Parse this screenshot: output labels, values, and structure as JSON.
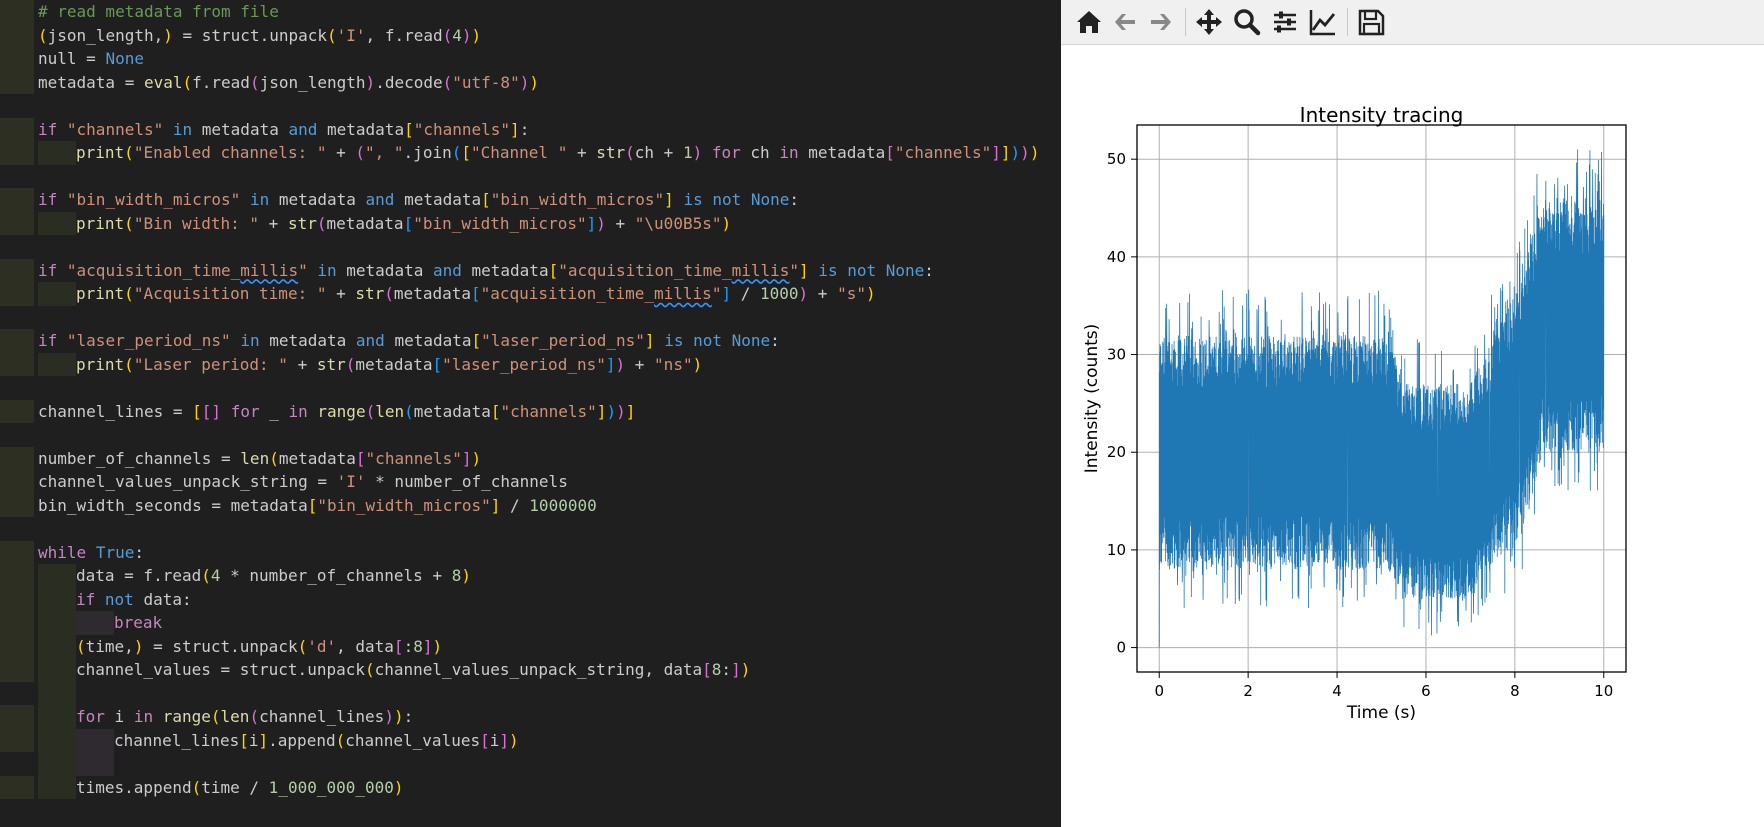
{
  "editor": {
    "lines": [
      {
        "ind": 0,
        "html": "<span class=\"cm\"># read metadata from file</span>"
      },
      {
        "ind": 0,
        "html": "<span class=\"br1\">(</span>json_length,<span class=\"br1\">)</span> = struct.unpack<span class=\"br1\">(</span><span class=\"str\">'I'</span>, f.read<span class=\"br2\">(</span><span class=\"num\">4</span><span class=\"br2\">)</span><span class=\"br1\">)</span>"
      },
      {
        "ind": 0,
        "html": "null = <span class=\"kw\">None</span>"
      },
      {
        "ind": 0,
        "html": "metadata = <span class=\"fn\">eval</span><span class=\"br1\">(</span>f.read<span class=\"br2\">(</span>json_length<span class=\"br2\">)</span>.decode<span class=\"br2\">(</span><span class=\"str\">\"utf-8\"</span><span class=\"br2\">)</span><span class=\"br1\">)</span>"
      },
      {
        "ind": -1,
        "html": ""
      },
      {
        "ind": 0,
        "html": "<span class=\"kw2\">if</span> <span class=\"str\">\"channels\"</span> <span class=\"kw\">in</span> metadata <span class=\"kw\">and</span> metadata<span class=\"br1\">[</span><span class=\"str\">\"channels\"</span><span class=\"br1\">]</span>:"
      },
      {
        "ind": 1,
        "html": "<span class=\"fn\">print</span><span class=\"br1\">(</span><span class=\"str\">\"Enabled channels: \"</span> + <span class=\"br2\">(</span><span class=\"str\">\", \"</span>.join<span class=\"br3\">(</span><span class=\"br1\">[</span><span class=\"str\">\"Channel \"</span> + <span class=\"fn\">str</span><span class=\"br2\">(</span>ch + <span class=\"num\">1</span><span class=\"br2\">)</span> <span class=\"kw2\">for</span> ch <span class=\"kw2\">in</span> metadata<span class=\"br2\">[</span><span class=\"str\">\"channels\"</span><span class=\"br2\">]</span><span class=\"br1\">]</span><span class=\"br3\">)</span><span class=\"br2\">)</span><span class=\"br1\">)</span>"
      },
      {
        "ind": -1,
        "html": ""
      },
      {
        "ind": 0,
        "html": "<span class=\"kw2\">if</span> <span class=\"str\">\"bin_width_micros\"</span> <span class=\"kw\">in</span> metadata <span class=\"kw\">and</span> metadata<span class=\"br1\">[</span><span class=\"str\">\"bin_width_micros\"</span><span class=\"br1\">]</span> <span class=\"kw\">is not</span> <span class=\"kw\">None</span>:"
      },
      {
        "ind": 1,
        "html": "<span class=\"fn\">print</span><span class=\"br1\">(</span><span class=\"str\">\"Bin width: \"</span> + <span class=\"fn\">str</span><span class=\"br2\">(</span>metadata<span class=\"br3\">[</span><span class=\"str\">\"bin_width_micros\"</span><span class=\"br3\">]</span><span class=\"br2\">)</span> + <span class=\"str\">\"\\u00B5s\"</span><span class=\"br1\">)</span>"
      },
      {
        "ind": -1,
        "html": ""
      },
      {
        "ind": 0,
        "html": "<span class=\"kw2\">if</span> <span class=\"str\">\"acquisition_time_<span class=\"squig\">millis</span>\"</span> <span class=\"kw\">in</span> metadata <span class=\"kw\">and</span> metadata<span class=\"br1\">[</span><span class=\"str\">\"acquisition_time_<span class=\"squig\">millis</span>\"</span><span class=\"br1\">]</span> <span class=\"kw\">is not</span> <span class=\"kw\">None</span>:"
      },
      {
        "ind": 1,
        "html": "<span class=\"fn\">print</span><span class=\"br1\">(</span><span class=\"str\">\"Acquisition time: \"</span> + <span class=\"fn\">str</span><span class=\"br2\">(</span>metadata<span class=\"br3\">[</span><span class=\"str\">\"acquisition_time_<span class=\"squig\">millis</span>\"</span><span class=\"br3\">]</span> / <span class=\"num\">1000</span><span class=\"br2\">)</span> + <span class=\"str\">\"s\"</span><span class=\"br1\">)</span>"
      },
      {
        "ind": -1,
        "html": ""
      },
      {
        "ind": 0,
        "html": "<span class=\"kw2\">if</span> <span class=\"str\">\"laser_period_ns\"</span> <span class=\"kw\">in</span> metadata <span class=\"kw\">and</span> metadata<span class=\"br1\">[</span><span class=\"str\">\"laser_period_ns\"</span><span class=\"br1\">]</span> <span class=\"kw\">is not</span> <span class=\"kw\">None</span>:"
      },
      {
        "ind": 1,
        "html": "<span class=\"fn\">print</span><span class=\"br1\">(</span><span class=\"str\">\"Laser period: \"</span> + <span class=\"fn\">str</span><span class=\"br2\">(</span>metadata<span class=\"br3\">[</span><span class=\"str\">\"laser_period_ns\"</span><span class=\"br3\">]</span><span class=\"br2\">)</span> + <span class=\"str\">\"ns\"</span><span class=\"br1\">)</span>"
      },
      {
        "ind": -1,
        "html": ""
      },
      {
        "ind": 0,
        "html": "channel_lines = <span class=\"br1\">[</span><span class=\"br2\">[</span><span class=\"br2\">]</span> <span class=\"kw2\">for</span> _ <span class=\"kw2\">in</span> <span class=\"fn\">range</span><span class=\"br2\">(</span><span class=\"fn\">len</span><span class=\"br3\">(</span>metadata<span class=\"br1\">[</span><span class=\"str\">\"channels\"</span><span class=\"br1\">]</span><span class=\"br3\">)</span><span class=\"br2\">)</span><span class=\"br1\">]</span>"
      },
      {
        "ind": -1,
        "html": ""
      },
      {
        "ind": 0,
        "html": "number_of_channels = <span class=\"fn\">len</span><span class=\"br1\">(</span>metadata<span class=\"br2\">[</span><span class=\"str\">\"channels\"</span><span class=\"br2\">]</span><span class=\"br1\">)</span>"
      },
      {
        "ind": 0,
        "html": "channel_values_unpack_string = <span class=\"str\">'I'</span> * number_of_channels"
      },
      {
        "ind": 0,
        "html": "bin_width_seconds = metadata<span class=\"br1\">[</span><span class=\"str\">\"bin_width_micros\"</span><span class=\"br1\">]</span> / <span class=\"num\">1000000</span>"
      },
      {
        "ind": -1,
        "html": ""
      },
      {
        "ind": 0,
        "html": "<span class=\"kw2\">while</span> <span class=\"kw\">True</span>:"
      },
      {
        "ind": 1,
        "html": "data = f.read<span class=\"br1\">(</span><span class=\"num\">4</span> * number_of_channels + <span class=\"num\">8</span><span class=\"br1\">)</span>"
      },
      {
        "ind": 1,
        "html": "<span class=\"kw2\">if</span> <span class=\"kw\">not</span> data:"
      },
      {
        "ind": 2,
        "html": "<span class=\"kw2\">break</span>"
      },
      {
        "ind": 1,
        "html": "<span class=\"br1\">(</span>time,<span class=\"br1\">)</span> = struct.unpack<span class=\"br1\">(</span><span class=\"str\">'d'</span>, data<span class=\"br2\">[</span>:<span class=\"num\">8</span><span class=\"br2\">]</span><span class=\"br1\">)</span>"
      },
      {
        "ind": 1,
        "html": "channel_values = struct.unpack<span class=\"br1\">(</span>channel_values_unpack_string, data<span class=\"br2\">[</span><span class=\"num\">8</span>:<span class=\"br2\">]</span><span class=\"br1\">)</span>"
      },
      {
        "ind": -2,
        "html": ""
      },
      {
        "ind": 1,
        "html": "<span class=\"kw2\">for</span> i <span class=\"kw2\">in</span> <span class=\"fn\">range</span><span class=\"br1\">(</span><span class=\"fn\">len</span><span class=\"br2\">(</span>channel_lines<span class=\"br2\">)</span><span class=\"br1\">)</span>:"
      },
      {
        "ind": 2,
        "html": "channel_lines<span class=\"br1\">[</span>i<span class=\"br1\">]</span>.append<span class=\"br1\">(</span>channel_values<span class=\"br2\">[</span>i<span class=\"br2\">]</span><span class=\"br1\">)</span>"
      },
      {
        "ind": -3,
        "html": ""
      },
      {
        "ind": 1,
        "html": "times.append<span class=\"br1\">(</span>time / <span class=\"num\">1_000_000_000</span><span class=\"br1\">)</span>"
      }
    ]
  },
  "toolbar": {
    "buttons": [
      {
        "name": "home-icon"
      },
      {
        "name": "back-arrow-icon"
      },
      {
        "name": "forward-arrow-icon"
      },
      {
        "name": "pan-move-icon"
      },
      {
        "name": "zoom-magnifier-icon"
      },
      {
        "name": "configure-subplots-icon"
      },
      {
        "name": "edit-axis-icon"
      },
      {
        "name": "save-icon"
      }
    ]
  },
  "chart_data": {
    "type": "line",
    "title": "Intensity tracing",
    "xlabel": "Time (s)",
    "ylabel": "Intensity (counts)",
    "xlim": [
      -0.5,
      10.5
    ],
    "ylim": [
      -2.5,
      53.5
    ],
    "xticks": [
      0,
      2,
      4,
      6,
      8,
      10
    ],
    "yticks": [
      0,
      10,
      20,
      30,
      40,
      50
    ],
    "grid": true,
    "color": "#1f77b4",
    "series": [
      {
        "x": [
          0.0,
          0.5,
          1.0,
          2.0,
          3.0,
          4.0,
          5.0,
          5.3,
          5.5,
          6.0,
          6.5,
          7.0,
          7.3,
          7.6,
          8.0,
          8.2,
          8.4,
          8.6,
          8.8,
          9.0,
          9.5,
          10.0
        ],
        "mean": [
          20,
          20,
          20,
          20,
          20,
          20,
          20,
          19,
          16,
          16,
          16,
          16,
          18,
          21,
          24,
          26,
          29,
          33,
          34,
          33,
          33,
          33
        ],
        "low": [
          8,
          8,
          8,
          8,
          8,
          8,
          8,
          7,
          5,
          5,
          5,
          5,
          8,
          9,
          10,
          12,
          15,
          20,
          20,
          20,
          20,
          20
        ],
        "high": [
          32,
          32,
          32,
          32,
          32,
          32,
          32,
          30,
          27,
          27,
          27,
          27,
          30,
          33,
          36,
          40,
          43,
          45,
          46,
          46,
          46,
          46
        ]
      }
    ]
  }
}
